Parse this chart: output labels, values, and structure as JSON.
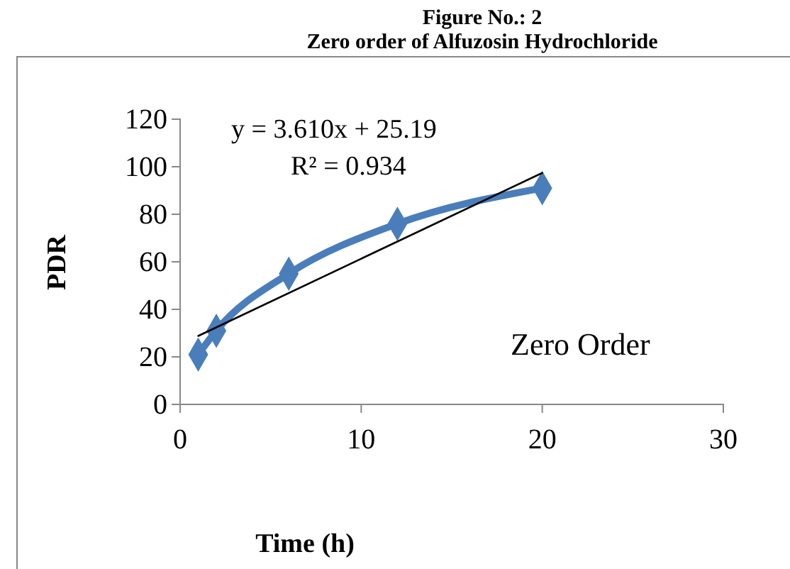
{
  "chart_data": {
    "type": "line",
    "title": "Figure No.: 2",
    "subtitle": "Zero order of Alfuzosin Hydrochloride",
    "xlabel": "Time (h)",
    "ylabel": "PDR",
    "x": [
      1,
      2,
      6,
      12,
      20
    ],
    "series": [
      {
        "color": "#4a7ebb",
        "values": [
          21,
          31,
          55,
          76,
          91
        ],
        "marker": "diamond"
      },
      {
        "type": "line",
        "color": "#000000",
        "x": [
          1,
          20
        ],
        "values": [
          28.8,
          97.4
        ],
        "marker": "none"
      }
    ],
    "xlim": [
      0,
      30
    ],
    "xticks": [
      0,
      10,
      20,
      30
    ],
    "ylim": [
      0,
      120
    ],
    "yticks": [
      0,
      20,
      40,
      60,
      80,
      100,
      120
    ],
    "grid": false,
    "annotations": [
      "y = 3.610x + 25.19",
      "R² = 0.934",
      "Zero Order"
    ]
  }
}
